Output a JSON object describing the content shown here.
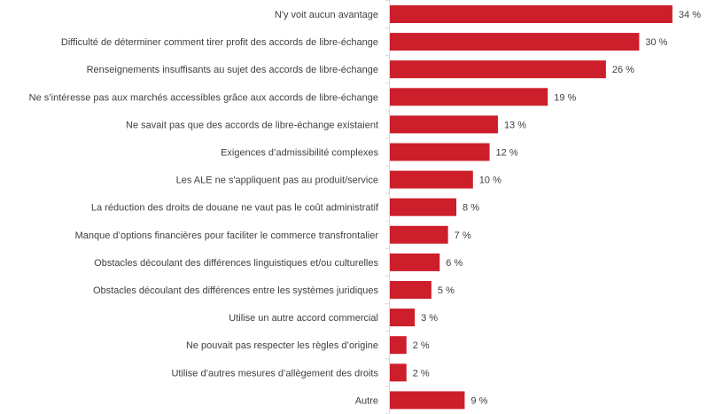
{
  "chart_data": {
    "type": "bar",
    "orientation": "horizontal",
    "categories": [
      "N'y voit aucun avantage",
      "Difficulté de déterminer comment tirer profit des accords de libre-échange",
      "Renseignements insuffisants au sujet des accords de libre-échange",
      "Ne s’intéresse pas aux marchés accessibles grâce aux accords de libre-échange",
      "Ne savait pas que des accords de libre-échange existaient",
      "Exigences d’admissibilité complexes",
      "Les ALE ne s'appliquent pas au produit/service",
      "La réduction des droits de douane ne vaut pas le coût administratif",
      "Manque d’options financières pour faciliter le commerce transfrontalier",
      "Obstacles découlant des différences linguistiques et/ou culturelles",
      "Obstacles découlant des différences entre les systèmes juridiques",
      "Utilise un autre accord commercial",
      "Ne pouvait pas respecter les règles d’origine",
      "Utilise d’autres mesures d’allègement des droits",
      "Autre"
    ],
    "values": [
      34,
      30,
      26,
      19,
      13,
      12,
      10,
      8,
      7,
      6,
      5,
      3,
      2,
      2,
      9
    ],
    "data_labels": [
      "34 %",
      "30 %",
      "26 %",
      "19 %",
      "13 %",
      "12 %",
      "10 %",
      "8 %",
      "7 %",
      "6 %",
      "5 %",
      "3 %",
      "2 %",
      "2 %",
      "9 %"
    ],
    "xlim": [
      0,
      40
    ],
    "grid": false,
    "bar_color": "#cc1f2b"
  }
}
